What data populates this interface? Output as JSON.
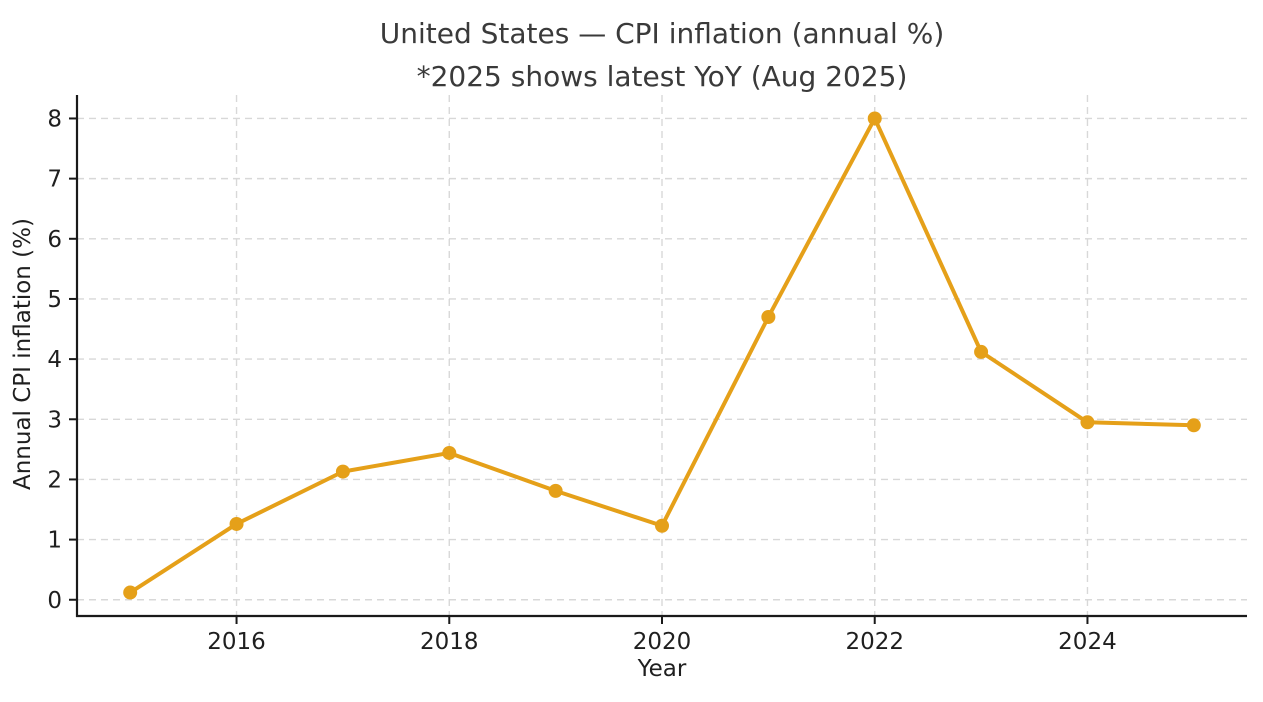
{
  "chart_data": {
    "type": "line",
    "title_line1": "United States — CPI inflation (annual %)",
    "title_line2": "*2025 shows latest YoY (Aug 2025)",
    "xlabel": "Year",
    "ylabel": "Annual CPI inflation (%)",
    "x": [
      2015,
      2016,
      2017,
      2018,
      2019,
      2020,
      2021,
      2022,
      2023,
      2024,
      2025
    ],
    "values": [
      0.12,
      1.26,
      2.13,
      2.44,
      1.81,
      1.23,
      4.7,
      8.0,
      4.12,
      2.95,
      2.9
    ],
    "series_name": "Annual CPI inflation (%)",
    "x_ticks": [
      2016,
      2018,
      2020,
      2022,
      2024
    ],
    "y_ticks": [
      0,
      1,
      2,
      3,
      4,
      5,
      6,
      7,
      8
    ],
    "xlim": [
      2014.5,
      2025.5
    ],
    "ylim": [
      -0.27,
      8.39
    ],
    "grid": true,
    "legend": "none",
    "line_color": "#E5A019",
    "marker_color": "#E5A019",
    "grid_color": "#D8D8D8",
    "axis_color": "#1A1A1A",
    "title_color": "#3A3A3A"
  }
}
